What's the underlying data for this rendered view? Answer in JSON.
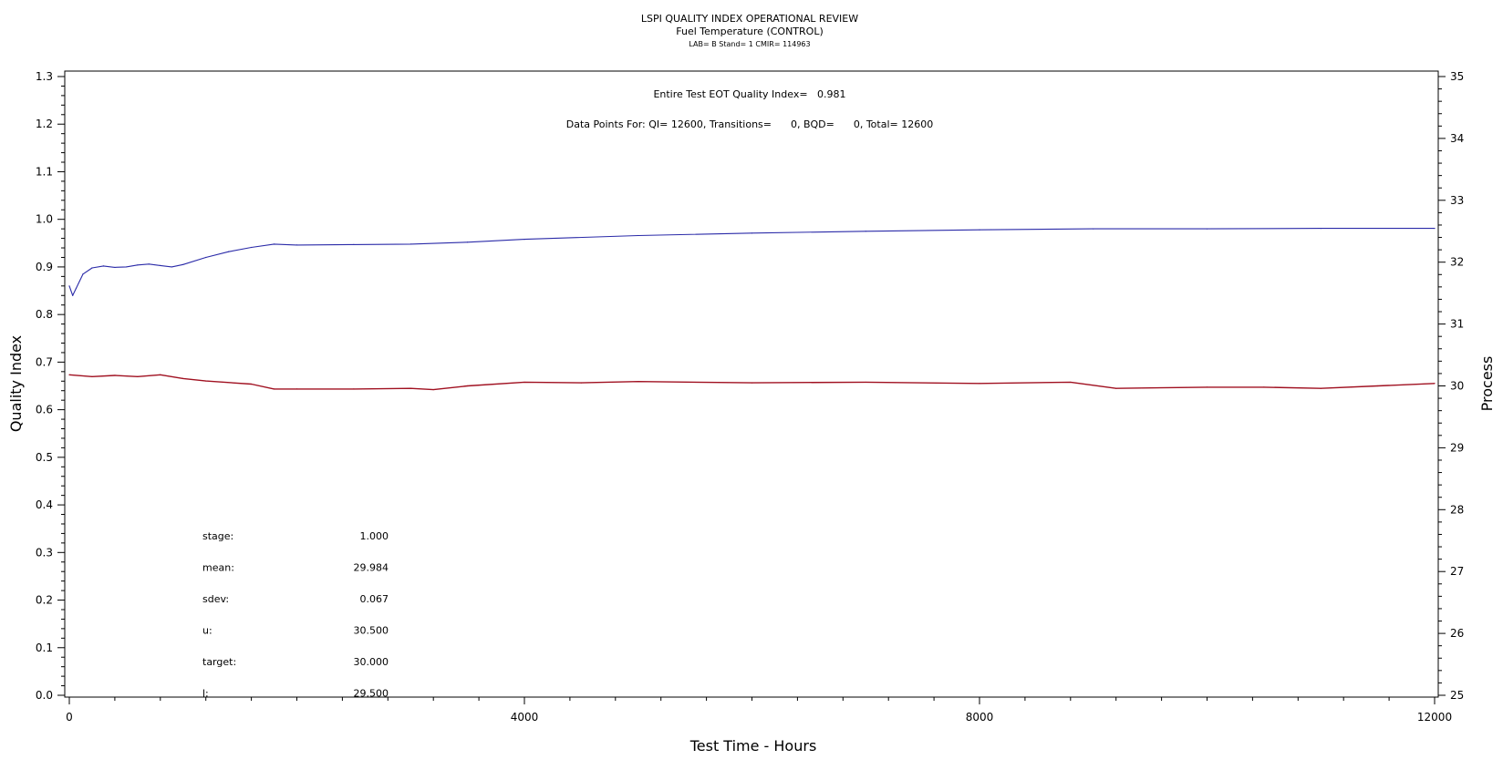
{
  "chart_data": {
    "type": "line",
    "title": "LSPI QUALITY INDEX OPERATIONAL REVIEW",
    "subtitle": "Fuel Temperature (CONTROL)",
    "subtitle2": "LAB= B Stand= 1 CMIR= 114963",
    "annotation_qi": "Entire Test EOT Quality Index=   0.981",
    "annotation_points": "Data Points For: QI= 12600, Transitions=      0, BQD=      0, Total= 12600",
    "xlabel": "Test Time - Hours",
    "ylabel_left": "Quality Index",
    "ylabel_right": "Process",
    "xlim": [
      0,
      12000
    ],
    "ylim_left": [
      0.0,
      1.3
    ],
    "ylim_right": [
      25,
      35
    ],
    "x_ticks": [
      "0",
      "4000",
      "8000",
      "12000"
    ],
    "y_left_ticks": [
      "0.0",
      "0.1",
      "0.2",
      "0.3",
      "0.4",
      "0.5",
      "0.6",
      "0.7",
      "0.8",
      "0.9",
      "1.0",
      "1.1",
      "1.2",
      "1.3"
    ],
    "y_right_ticks": [
      "25",
      "26",
      "27",
      "28",
      "29",
      "30",
      "31",
      "32",
      "33",
      "34",
      "35"
    ],
    "grid": false,
    "series": [
      {
        "axis": "left",
        "color": "#2a2aa8",
        "x": [
          0,
          30,
          60,
          120,
          200,
          300,
          400,
          500,
          600,
          700,
          800,
          900,
          1000,
          1200,
          1400,
          1600,
          1800,
          2000,
          2500,
          3000,
          3500,
          4000,
          5000,
          6000,
          7000,
          8000,
          9000,
          10000,
          11000,
          12000
        ],
        "values": [
          0.86,
          0.84,
          0.855,
          0.885,
          0.898,
          0.902,
          0.899,
          0.9,
          0.904,
          0.906,
          0.903,
          0.9,
          0.905,
          0.92,
          0.932,
          0.941,
          0.948,
          0.946,
          0.947,
          0.948,
          0.952,
          0.958,
          0.966,
          0.971,
          0.975,
          0.978,
          0.98,
          0.98,
          0.981,
          0.981
        ]
      },
      {
        "axis": "right",
        "color": "#a01020",
        "x": [
          0,
          200,
          400,
          600,
          800,
          1000,
          1200,
          1600,
          1800,
          2000,
          2500,
          3000,
          3200,
          3500,
          4000,
          4500,
          5000,
          6000,
          7000,
          8000,
          8800,
          9200,
          10000,
          10500,
          11000,
          11500,
          12000
        ],
        "values": [
          30.18,
          30.15,
          30.17,
          30.15,
          30.18,
          30.12,
          30.08,
          30.03,
          29.95,
          29.95,
          29.95,
          29.96,
          29.94,
          30.0,
          30.06,
          30.05,
          30.07,
          30.05,
          30.06,
          30.04,
          30.06,
          29.96,
          29.98,
          29.98,
          29.96,
          30.0,
          30.04
        ]
      }
    ],
    "stats": [
      {
        "label": "stage:",
        "value": "1.000"
      },
      {
        "label": "mean:",
        "value": "29.984"
      },
      {
        "label": "sdev:",
        "value": "0.067"
      },
      {
        "label": "u:",
        "value": "30.500"
      },
      {
        "label": "target:",
        "value": "30.000"
      },
      {
        "label": "l:",
        "value": "29.500"
      }
    ]
  }
}
